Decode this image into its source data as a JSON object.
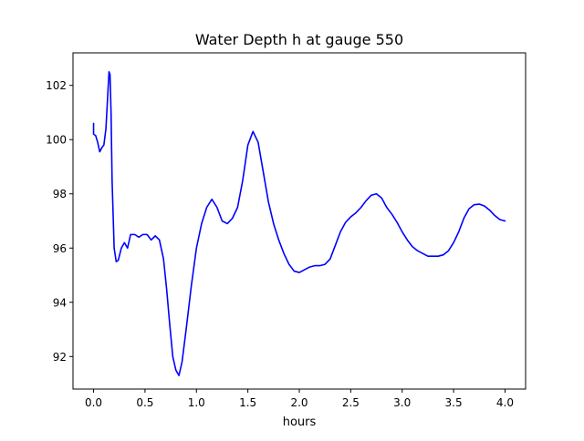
{
  "chart_data": {
    "type": "line",
    "title": "Water Depth h at gauge 550",
    "xlabel": "hours",
    "ylabel": "",
    "xlim": [
      -0.2,
      4.2
    ],
    "ylim": [
      90.8,
      103.2
    ],
    "xticks": [
      0.0,
      0.5,
      1.0,
      1.5,
      2.0,
      2.5,
      3.0,
      3.5,
      4.0
    ],
    "xtick_labels": [
      "0.0",
      "0.5",
      "1.0",
      "1.5",
      "2.0",
      "2.5",
      "3.0",
      "3.5",
      "4.0"
    ],
    "yticks": [
      92,
      94,
      96,
      98,
      100,
      102
    ],
    "ytick_labels": [
      "92",
      "94",
      "96",
      "98",
      "100",
      "102"
    ],
    "grid": false,
    "series": [
      {
        "color": "#0000ff",
        "x": [
          0.0,
          0.0,
          0.02,
          0.04,
          0.06,
          0.08,
          0.1,
          0.12,
          0.14,
          0.15,
          0.16,
          0.17,
          0.18,
          0.2,
          0.22,
          0.24,
          0.27,
          0.3,
          0.33,
          0.36,
          0.4,
          0.44,
          0.48,
          0.52,
          0.56,
          0.6,
          0.64,
          0.68,
          0.71,
          0.74,
          0.77,
          0.8,
          0.83,
          0.86,
          0.9,
          0.95,
          1.0,
          1.05,
          1.1,
          1.15,
          1.2,
          1.25,
          1.3,
          1.35,
          1.4,
          1.45,
          1.5,
          1.55,
          1.6,
          1.65,
          1.7,
          1.75,
          1.8,
          1.85,
          1.9,
          1.95,
          2.0,
          2.05,
          2.1,
          2.15,
          2.2,
          2.25,
          2.3,
          2.35,
          2.4,
          2.45,
          2.5,
          2.55,
          2.6,
          2.65,
          2.7,
          2.75,
          2.8,
          2.85,
          2.9,
          2.95,
          3.0,
          3.05,
          3.1,
          3.15,
          3.2,
          3.25,
          3.3,
          3.35,
          3.4,
          3.45,
          3.5,
          3.55,
          3.6,
          3.65,
          3.7,
          3.75,
          3.8,
          3.85,
          3.9,
          3.95,
          4.0
        ],
        "values": [
          100.6,
          100.2,
          100.15,
          99.9,
          99.55,
          99.7,
          99.8,
          100.4,
          101.8,
          102.5,
          102.4,
          101.0,
          98.5,
          96.0,
          95.5,
          95.55,
          96.0,
          96.2,
          96.0,
          96.5,
          96.5,
          96.4,
          96.5,
          96.5,
          96.3,
          96.45,
          96.3,
          95.6,
          94.5,
          93.2,
          92.0,
          91.5,
          91.3,
          91.8,
          93.0,
          94.6,
          96.0,
          96.9,
          97.5,
          97.8,
          97.5,
          97.0,
          96.9,
          97.1,
          97.5,
          98.5,
          99.8,
          100.3,
          99.9,
          98.8,
          97.7,
          96.9,
          96.3,
          95.8,
          95.4,
          95.15,
          95.1,
          95.2,
          95.3,
          95.35,
          95.35,
          95.4,
          95.6,
          96.1,
          96.6,
          96.95,
          97.15,
          97.3,
          97.5,
          97.75,
          97.95,
          98.0,
          97.85,
          97.5,
          97.25,
          96.95,
          96.6,
          96.3,
          96.05,
          95.9,
          95.8,
          95.7,
          95.7,
          95.7,
          95.75,
          95.9,
          96.2,
          96.6,
          97.1,
          97.45,
          97.6,
          97.62,
          97.55,
          97.4,
          97.2,
          97.05,
          97.0
        ]
      }
    ]
  }
}
